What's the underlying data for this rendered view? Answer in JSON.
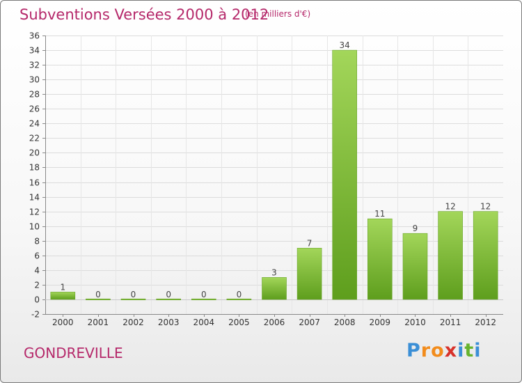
{
  "header": {
    "title": "Subventions Versées 2000 à 2012",
    "subtitle": "(en milliers d'€)"
  },
  "footer": {
    "place": "GONDREVILLE",
    "logo": {
      "letters": [
        "P",
        "r",
        "o",
        "x",
        "i",
        "t",
        "i"
      ],
      "colors": [
        "#3b8fd6",
        "#f28c1c",
        "#f28c1c",
        "#d8322b",
        "#3b8fd6",
        "#66b32e",
        "#3b8fd6"
      ]
    }
  },
  "colors": {
    "accent_text": "#b5286a",
    "bar_light": "#a3d65a",
    "bar_dark": "#5e9e1d"
  },
  "chart_data": {
    "type": "bar",
    "categories": [
      "2000",
      "2001",
      "2002",
      "2003",
      "2004",
      "2005",
      "2006",
      "2007",
      "2008",
      "2009",
      "2010",
      "2011",
      "2012"
    ],
    "values": [
      1,
      0,
      0,
      0,
      0,
      0,
      3,
      7,
      34,
      11,
      9,
      12,
      12
    ],
    "data_labels": [
      "1",
      "0",
      "0",
      "0",
      "0",
      "0",
      "3",
      "7",
      "34",
      "11",
      "9",
      "12",
      "12"
    ],
    "yticks": [
      -2,
      0,
      2,
      4,
      6,
      8,
      10,
      12,
      14,
      16,
      18,
      20,
      22,
      24,
      26,
      28,
      30,
      32,
      34,
      36
    ],
    "ylim": [
      -2,
      36
    ],
    "grid": true,
    "title": "Subventions Versées 2000 à 2012",
    "xlabel": "",
    "ylabel": ""
  }
}
